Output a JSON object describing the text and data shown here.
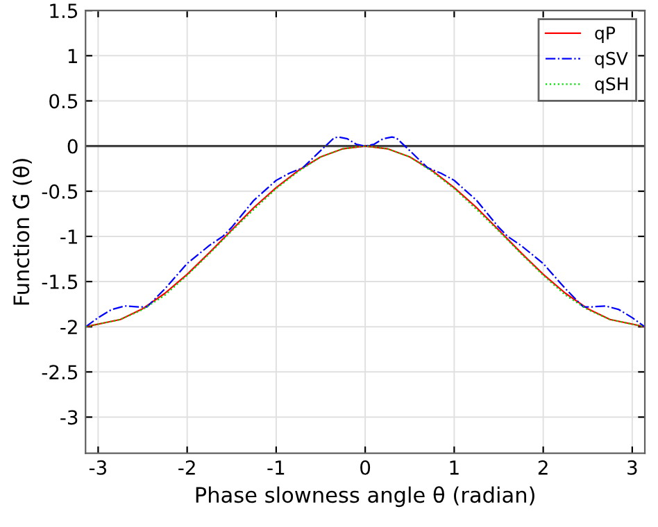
{
  "chart_data": {
    "type": "line",
    "xlabel": "Phase slowness angle θ (radian)",
    "ylabel": "Function G̃ (θ)",
    "xlim": [
      -3.1416,
      3.1416
    ],
    "ylim": [
      -3.4,
      1.5
    ],
    "xticks": [
      -3,
      -2,
      -1,
      0,
      1,
      2,
      3
    ],
    "yticks": [
      -3,
      -2.5,
      -2,
      -1.5,
      -1,
      -0.5,
      0,
      0.5,
      1,
      1.5
    ],
    "grid": true,
    "legend": "top right",
    "marker": "none",
    "ref_lines": [
      {
        "axis": "y",
        "value": 0,
        "color": "#404040",
        "line_style": "solid"
      }
    ],
    "series": [
      {
        "name": "qP",
        "color": "#ff0000",
        "line_style": "solid",
        "x": [
          -3.14,
          -2.75,
          -2.5,
          -2.25,
          -2,
          -1.75,
          -1.5,
          -1.25,
          -1,
          -0.75,
          -0.5,
          -0.25,
          0,
          0.25,
          0.5,
          0.75,
          1,
          1.25,
          1.5,
          1.75,
          2,
          2.25,
          2.5,
          2.75,
          3.14
        ],
        "values": [
          -2,
          -1.92,
          -1.8,
          -1.63,
          -1.42,
          -1.18,
          -0.93,
          -0.68,
          -0.46,
          -0.27,
          -0.12,
          -0.03,
          0,
          -0.03,
          -0.12,
          -0.27,
          -0.46,
          -0.68,
          -0.93,
          -1.18,
          -1.42,
          -1.63,
          -1.8,
          -1.92,
          -2
        ]
      },
      {
        "name": "qSV",
        "color": "#0000ff",
        "line_style": "dashdot",
        "x": [
          -3.14,
          -3.0,
          -2.85,
          -2.7,
          -2.55,
          -2.45,
          -2.25,
          -2.0,
          -1.75,
          -1.6,
          -1.5,
          -1.25,
          -1.0,
          -0.85,
          -0.7,
          -0.5,
          -0.35,
          -0.3,
          -0.2,
          -0.1,
          0,
          0.1,
          0.2,
          0.3,
          0.35,
          0.5,
          0.7,
          0.85,
          1.0,
          1.25,
          1.5,
          1.6,
          1.75,
          2.0,
          2.25,
          2.45,
          2.55,
          2.7,
          2.85,
          3.0,
          3.14
        ],
        "values": [
          -2,
          -1.9,
          -1.81,
          -1.77,
          -1.78,
          -1.78,
          -1.58,
          -1.3,
          -1.1,
          -1.0,
          -0.9,
          -0.6,
          -0.38,
          -0.3,
          -0.24,
          -0.05,
          0.09,
          0.1,
          0.08,
          0.02,
          0,
          0.02,
          0.08,
          0.1,
          0.09,
          -0.05,
          -0.24,
          -0.3,
          -0.38,
          -0.6,
          -0.9,
          -1.0,
          -1.1,
          -1.3,
          -1.58,
          -1.78,
          -1.78,
          -1.77,
          -1.81,
          -1.9,
          -2
        ]
      },
      {
        "name": "qSH",
        "color": "#00dd00",
        "line_style": "dotted",
        "x": [
          -3.14,
          -2.75,
          -2.5,
          -2.25,
          -2,
          -1.75,
          -1.5,
          -1.25,
          -1,
          -0.75,
          -0.5,
          -0.25,
          0,
          0.25,
          0.5,
          0.75,
          1,
          1.25,
          1.5,
          1.75,
          2,
          2.25,
          2.5,
          2.75,
          3.14
        ],
        "values": [
          -2,
          -1.92,
          -1.81,
          -1.65,
          -1.43,
          -1.19,
          -0.94,
          -0.7,
          -0.47,
          -0.28,
          -0.12,
          -0.03,
          0,
          -0.03,
          -0.12,
          -0.28,
          -0.47,
          -0.7,
          -0.94,
          -1.19,
          -1.43,
          -1.65,
          -1.81,
          -1.92,
          -2
        ]
      }
    ]
  }
}
